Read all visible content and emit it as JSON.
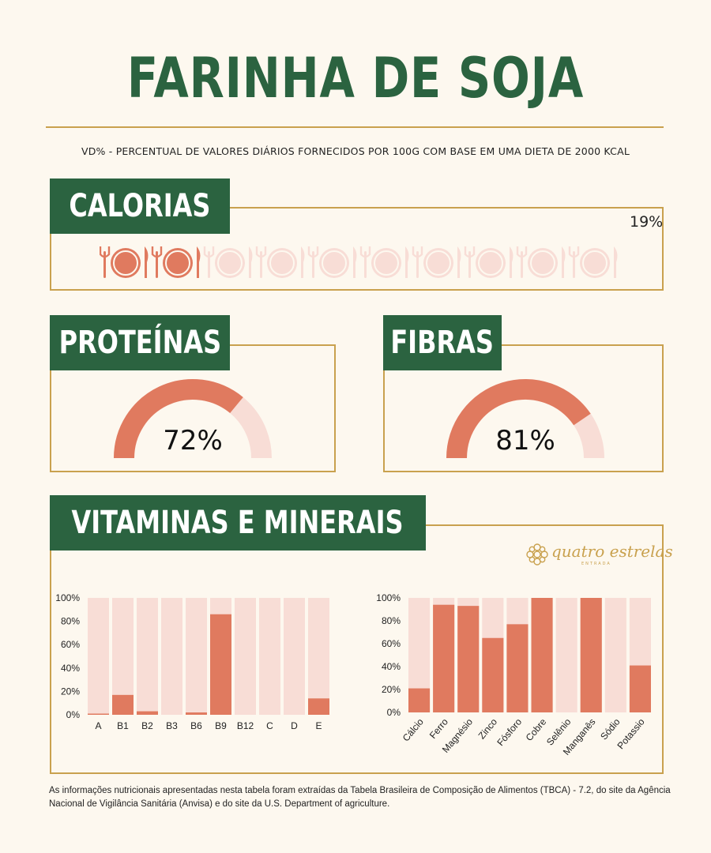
{
  "title": "FARINHA DE SOJA",
  "subtitle": "VD% - PERCENTUAL DE VALORES DIÁRIOS FORNECIDOS POR 100G COM BASE EM UMA DIETA DE 2000 KCAL",
  "calorias": {
    "label": "CALORIAS",
    "percent_text": "19%",
    "icons_total": 10,
    "icons_filled": 2,
    "icon": "plate-fork-knife-icon"
  },
  "proteinas": {
    "label": "PROTEÍNAS",
    "percent_text": "72%",
    "value": 72
  },
  "fibras": {
    "label": "FIBRAS",
    "percent_text": "81%",
    "value": 81
  },
  "vitaminas": {
    "label": "VITAMINAS E MINERAIS"
  },
  "logo": {
    "text": "quatro estrelas",
    "sub": "ENTRADA"
  },
  "colors": {
    "green": "#2b6340",
    "gold": "#c9a14e",
    "coral": "#e07a5f",
    "light": "#f8ddd6",
    "bg": "#fdf8ef"
  },
  "chart_data": [
    {
      "type": "bar",
      "categories": [
        "A",
        "B1",
        "B2",
        "B3",
        "B6",
        "B9",
        "B12",
        "C",
        "D",
        "E"
      ],
      "values": [
        1,
        17,
        3,
        0,
        2,
        86,
        0,
        0,
        0,
        14
      ],
      "yticks": [
        "0%",
        "20%",
        "40%",
        "60%",
        "80%",
        "100%"
      ],
      "ylim": [
        0,
        100
      ],
      "stacked_background": true
    },
    {
      "type": "bar",
      "categories": [
        "Cálcio",
        "Ferro",
        "Magnésio",
        "Zinco",
        "Fósforo",
        "Cobre",
        "Selênio",
        "Manganês",
        "Sódio",
        "Potassio"
      ],
      "values": [
        21,
        94,
        93,
        65,
        77,
        100,
        0,
        100,
        0,
        41
      ],
      "yticks": [
        "0%",
        "20%",
        "40%",
        "60%",
        "80%",
        "100%"
      ],
      "ylim": [
        0,
        100
      ],
      "stacked_background": true
    }
  ],
  "footnote": "As informações nutricionais apresentadas nesta tabela foram extraídas da Tabela Brasileira de Composição de Alimentos (TBCA) - 7.2, do site da Agência Nacional de Vigilância Sanitária (Anvisa) e do site da U.S. Department of agriculture."
}
